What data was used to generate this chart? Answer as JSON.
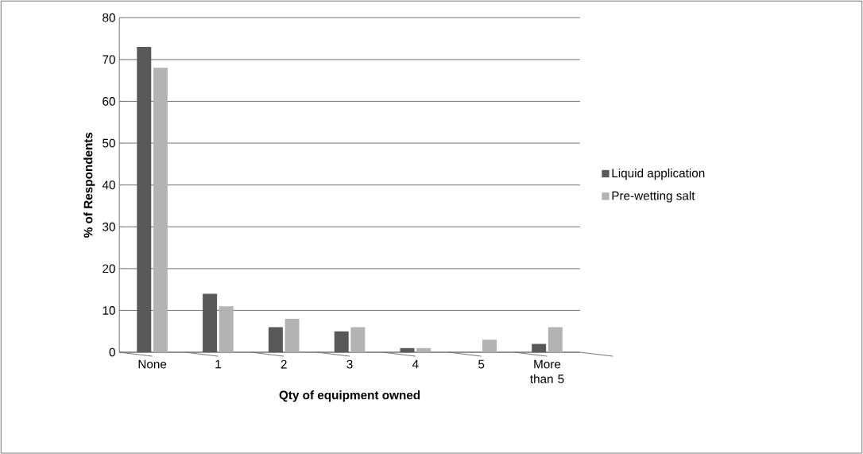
{
  "chart_data": {
    "type": "bar",
    "xlabel": "Qty of equipment owned",
    "ylabel": "% of Respondents",
    "categories": [
      "None",
      "1",
      "2",
      "3",
      "4",
      "5",
      "More than 5"
    ],
    "series": [
      {
        "name": "Liquid application",
        "color": "#595959",
        "values": [
          73,
          14,
          6,
          5,
          1,
          0,
          2
        ]
      },
      {
        "name": "Pre-wetting salt",
        "color": "#b3b3b3",
        "values": [
          68,
          11,
          8,
          6,
          1,
          3,
          6
        ]
      }
    ],
    "ylim": [
      0,
      80
    ],
    "yticks": [
      0,
      10,
      20,
      30,
      40,
      50,
      60,
      70,
      80
    ],
    "grid": "y",
    "legend": "right"
  }
}
